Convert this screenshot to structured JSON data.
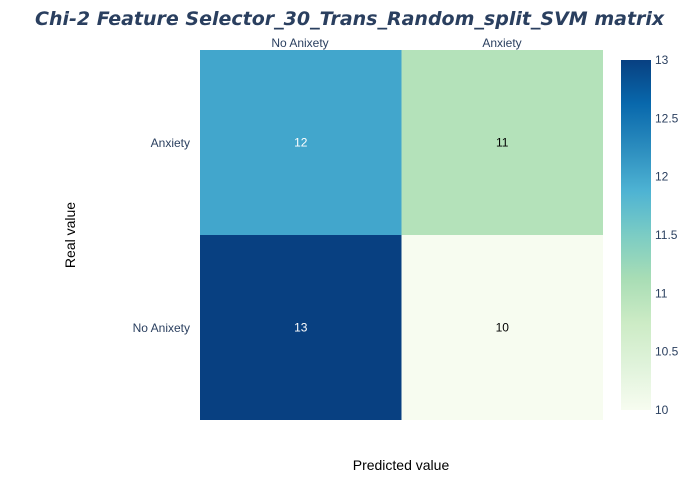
{
  "chart_data": {
    "type": "heatmap",
    "title": "Chi-2 Feature Selector_30_Trans_Random_split_SVM matrix",
    "xlabel": "Predicted value",
    "ylabel": "Real value",
    "x_categories": [
      "No Anixety",
      "Anxiety"
    ],
    "y_categories": [
      "Anxiety",
      "No Anixety"
    ],
    "z": [
      [
        12,
        11
      ],
      [
        13,
        10
      ]
    ],
    "cell_labels": [
      [
        "12",
        "11"
      ],
      [
        "13",
        "10"
      ]
    ],
    "colorscale": "GnBu",
    "zmin": 10,
    "zmax": 13,
    "colorbar_ticks": [
      "13",
      "12.5",
      "12",
      "11.5",
      "11",
      "10.5",
      "10"
    ],
    "x_tick_position": "top",
    "grid": false
  },
  "colors": {
    "title": "#2a3f5f",
    "tick": "#2a3f5f",
    "label_dark_bg": "#ffffff",
    "label_light_bg": "#000000"
  }
}
